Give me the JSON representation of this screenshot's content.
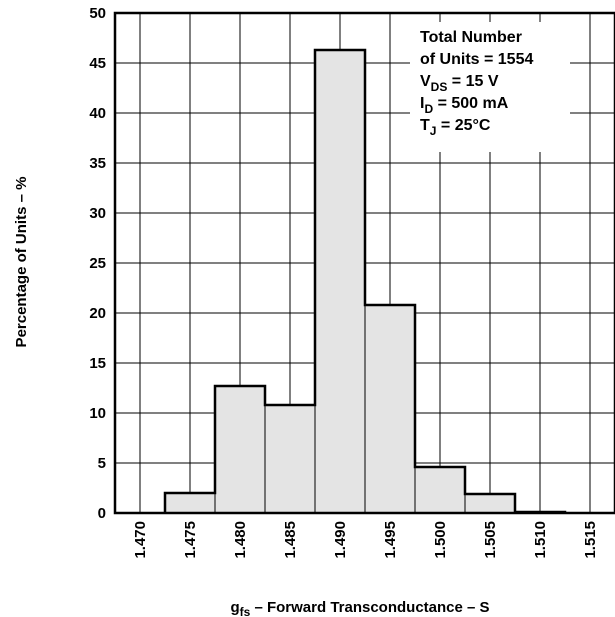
{
  "chart_data": {
    "type": "bar",
    "title": "",
    "xlabel_main": "g",
    "xlabel_sub": "fs",
    "xlabel_rest": " – Forward Transconductance – S",
    "ylabel": "Percentage of Units – %",
    "x_ticks": [
      "1.470",
      "1.475",
      "1.480",
      "1.485",
      "1.490",
      "1.495",
      "1.500",
      "1.505",
      "1.510",
      "1.515"
    ],
    "y_ticks": [
      "0",
      "5",
      "10",
      "15",
      "20",
      "25",
      "30",
      "35",
      "40",
      "45",
      "50"
    ],
    "xlim": [
      1.4675,
      1.5175
    ],
    "ylim": [
      0,
      50
    ],
    "bin_edges": [
      1.4725,
      1.4775,
      1.4825,
      1.4875,
      1.4925,
      1.4975,
      1.5025,
      1.5075,
      1.5125
    ],
    "values": [
      2.0,
      12.7,
      10.8,
      46.3,
      20.8,
      4.6,
      1.9,
      0.1
    ],
    "grid": true,
    "bar_color": "#e4e4e4",
    "annotation": {
      "line1": "Total Number",
      "line2": "of Units = 1554",
      "vds_main": "V",
      "vds_sub": "DS",
      "vds_rest": " = 15 V",
      "id_main": "I",
      "id_sub": "D",
      "id_rest": " = 500 mA",
      "tj_main": "T",
      "tj_sub": "J",
      "tj_rest": " = 25°C"
    }
  }
}
